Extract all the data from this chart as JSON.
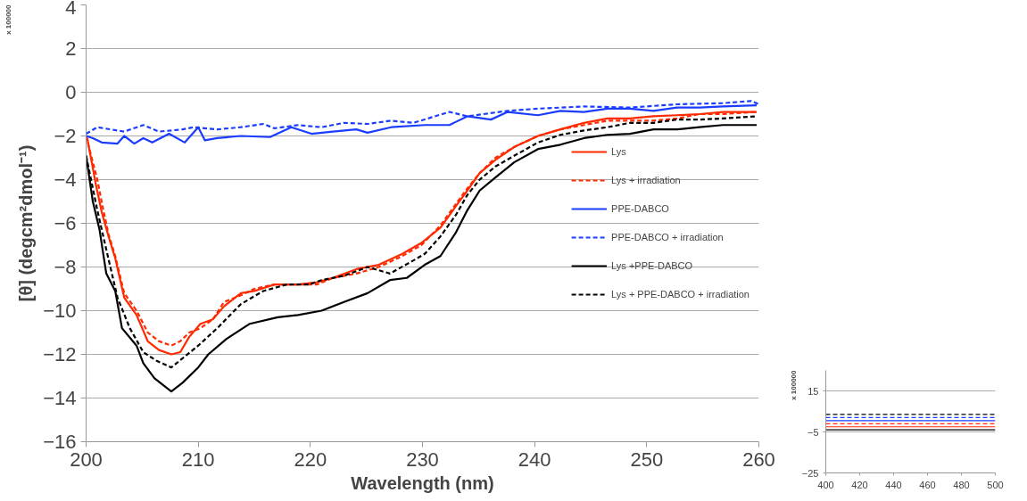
{
  "chart_data": [
    {
      "type": "line",
      "xlabel": "Wavelength (nm)",
      "ylabel": "[θ] (degcm²dmol⁻¹)",
      "annotations": [
        "x 100000"
      ],
      "xlim": [
        200,
        260
      ],
      "ylim": [
        -16,
        4
      ],
      "xticks": [
        200,
        210,
        220,
        230,
        240,
        250,
        260
      ],
      "yticks": [
        -16,
        -14,
        -12,
        -10,
        -8,
        -6,
        -4,
        -2,
        0,
        2,
        4
      ],
      "grid": "y",
      "legend": "right",
      "series": [
        {
          "name": "Lys",
          "color": "#ff2a00",
          "line_style": "solid",
          "x": [
            200.1,
            200.9,
            201.4,
            202.0,
            202.6,
            203.4,
            204.5,
            205.5,
            206.5,
            207.6,
            208.4,
            209.2,
            210.2,
            211.3,
            212.3,
            213.8,
            215.0,
            216.8,
            218.9,
            220.6,
            222.0,
            224.1,
            226.1,
            228.2,
            229.9,
            231.6,
            233.0,
            234.0,
            235.1,
            236.5,
            238.2,
            240.3,
            242.3,
            244.4,
            246.5,
            248.5,
            250.6,
            252.7,
            254.7,
            256.8,
            259.8
          ],
          "values": [
            -2.1,
            -4.3,
            -5.5,
            -6.6,
            -7.6,
            -9.4,
            -10.2,
            -11.4,
            -11.8,
            -12.0,
            -11.9,
            -11.2,
            -10.6,
            -10.4,
            -9.8,
            -9.2,
            -9.1,
            -8.8,
            -8.8,
            -8.7,
            -8.5,
            -8.1,
            -7.9,
            -7.4,
            -6.9,
            -6.2,
            -5.2,
            -4.5,
            -3.7,
            -3.1,
            -2.5,
            -2.0,
            -1.7,
            -1.4,
            -1.2,
            -1.2,
            -1.1,
            -1.05,
            -1.0,
            -0.9,
            -0.9
          ]
        },
        {
          "name": "Lys + irradiation",
          "color": "#ff2a00",
          "line_style": "dashed",
          "x": [
            200.0,
            201.0,
            201.5,
            202.0,
            202.6,
            203.4,
            204.5,
            205.5,
            206.5,
            207.6,
            208.4,
            209.2,
            210.2,
            211.3,
            212.3,
            213.8,
            215.0,
            216.8,
            218.9,
            220.6,
            222.0,
            224.1,
            226.1,
            228.2,
            229.9,
            231.6,
            233.0,
            234.0,
            235.1,
            236.5,
            238.2,
            240.3,
            242.3,
            244.4,
            246.5,
            248.5,
            250.6,
            252.7,
            254.7,
            256.8,
            259.8
          ],
          "values": [
            -2.0,
            -4.0,
            -5.3,
            -6.5,
            -7.5,
            -9.2,
            -10.0,
            -11.0,
            -11.4,
            -11.6,
            -11.4,
            -11.0,
            -10.8,
            -10.4,
            -9.6,
            -9.3,
            -9.0,
            -8.8,
            -8.8,
            -8.8,
            -8.5,
            -8.3,
            -8.0,
            -7.5,
            -7.0,
            -6.1,
            -5.1,
            -4.4,
            -3.7,
            -3.0,
            -2.5,
            -2.0,
            -1.7,
            -1.5,
            -1.3,
            -1.3,
            -1.3,
            -1.2,
            -1.0,
            -1.0,
            -0.9
          ]
        },
        {
          "name": "PPE-DABCO",
          "color": "#1a3cff",
          "line_style": "solid",
          "x": [
            200.0,
            200.6,
            201.4,
            202.8,
            203.4,
            204.3,
            205.1,
            205.9,
            207.4,
            208.8,
            210.0,
            210.6,
            211.7,
            213.8,
            216.4,
            218.3,
            220.1,
            222.0,
            224.1,
            225.1,
            227.2,
            230.2,
            232.4,
            234.0,
            236.1,
            237.6,
            240.3,
            242.3,
            244.4,
            246.5,
            248.5,
            250.6,
            252.7,
            254.7,
            256.8,
            259.8
          ],
          "values": [
            -2.0,
            -2.1,
            -2.3,
            -2.35,
            -2.0,
            -2.35,
            -2.1,
            -2.3,
            -1.9,
            -2.3,
            -1.6,
            -2.2,
            -2.1,
            -2.0,
            -2.05,
            -1.6,
            -1.9,
            -1.8,
            -1.7,
            -1.85,
            -1.6,
            -1.5,
            -1.5,
            -1.1,
            -1.25,
            -0.9,
            -1.05,
            -0.85,
            -0.9,
            -0.75,
            -0.75,
            -0.85,
            -0.7,
            -0.7,
            -0.65,
            -0.6
          ]
        },
        {
          "name": "PPE-DABCO + irradiation",
          "color": "#1a3cff",
          "line_style": "dashed",
          "x": [
            200.0,
            201.0,
            203.4,
            205.1,
            206.5,
            208.6,
            209.6,
            211.7,
            213.8,
            215.8,
            216.8,
            218.9,
            221.0,
            223.0,
            225.1,
            227.2,
            229.2,
            232.4,
            234.0,
            237.6,
            240.3,
            244.4,
            248.5,
            252.7,
            256.8,
            259.3,
            260.0
          ],
          "values": [
            -1.9,
            -1.6,
            -1.8,
            -1.5,
            -1.8,
            -1.7,
            -1.6,
            -1.7,
            -1.6,
            -1.45,
            -1.65,
            -1.5,
            -1.6,
            -1.4,
            -1.45,
            -1.3,
            -1.4,
            -0.9,
            -1.1,
            -0.85,
            -0.75,
            -0.65,
            -0.7,
            -0.55,
            -0.5,
            -0.4,
            -0.55
          ]
        },
        {
          "name": "Lys +PPE-DABCO",
          "color": "#000000",
          "line_style": "solid",
          "x": [
            200.0,
            200.6,
            201.2,
            201.8,
            202.6,
            203.2,
            204.5,
            205.1,
            206.1,
            207.6,
            208.6,
            210.0,
            210.9,
            212.5,
            214.6,
            217.1,
            218.9,
            221.0,
            223.0,
            225.1,
            227.1,
            228.6,
            230.2,
            231.6,
            233.0,
            234.0,
            235.1,
            236.5,
            238.2,
            240.3,
            242.3,
            244.4,
            246.5,
            248.5,
            250.6,
            252.7,
            254.7,
            256.8,
            259.8
          ],
          "values": [
            -2.9,
            -5.0,
            -6.3,
            -8.3,
            -9.1,
            -10.8,
            -11.6,
            -12.4,
            -13.1,
            -13.7,
            -13.3,
            -12.6,
            -12.0,
            -11.3,
            -10.6,
            -10.3,
            -10.2,
            -10.0,
            -9.6,
            -9.2,
            -8.6,
            -8.5,
            -7.9,
            -7.5,
            -6.4,
            -5.4,
            -4.5,
            -3.9,
            -3.2,
            -2.6,
            -2.4,
            -2.1,
            -1.95,
            -1.9,
            -1.7,
            -1.7,
            -1.6,
            -1.5,
            -1.5
          ]
        },
        {
          "name": "Lys + PPE-DABCO + irradiation",
          "color": "#000000",
          "line_style": "dashed",
          "x": [
            200.0,
            201.0,
            201.8,
            202.8,
            203.9,
            205.1,
            206.3,
            207.6,
            208.8,
            210.0,
            211.7,
            213.8,
            215.8,
            217.9,
            219.9,
            221.0,
            223.0,
            225.1,
            227.1,
            229.2,
            230.2,
            231.6,
            233.0,
            234.0,
            235.1,
            236.5,
            238.2,
            240.3,
            242.3,
            244.4,
            246.5,
            248.5,
            250.6,
            252.7,
            254.7,
            256.8,
            259.8
          ],
          "values": [
            -2.9,
            -5.4,
            -7.2,
            -9.4,
            -10.8,
            -11.9,
            -12.3,
            -12.6,
            -12.1,
            -11.6,
            -10.8,
            -9.7,
            -9.1,
            -8.8,
            -8.8,
            -8.6,
            -8.4,
            -8.0,
            -8.3,
            -7.7,
            -7.4,
            -6.6,
            -5.6,
            -4.7,
            -4.0,
            -3.4,
            -2.9,
            -2.3,
            -1.95,
            -1.75,
            -1.6,
            -1.4,
            -1.4,
            -1.25,
            -1.25,
            -1.2,
            -1.1
          ]
        }
      ]
    },
    {
      "type": "line",
      "annotations": [
        "x 100000"
      ],
      "xlim": [
        400,
        500
      ],
      "ylim": [
        -25,
        25
      ],
      "xticks": [
        400,
        420,
        440,
        460,
        480,
        500
      ],
      "yticks": [
        -25,
        -5,
        15
      ],
      "grid": "y",
      "series": [
        {
          "color": "#ff2a00",
          "line_style": "solid",
          "x": [
            400,
            500
          ],
          "values": [
            -2.5,
            -2.5
          ]
        },
        {
          "color": "#ff2a00",
          "line_style": "dashed",
          "x": [
            400,
            500
          ],
          "values": [
            -1,
            -1
          ]
        },
        {
          "color": "#1a3cff",
          "line_style": "solid",
          "x": [
            400,
            500
          ],
          "values": [
            0.5,
            0.5
          ]
        },
        {
          "color": "#1a3cff",
          "line_style": "dashed",
          "x": [
            400,
            500
          ],
          "values": [
            2,
            2
          ]
        },
        {
          "color": "#000000",
          "line_style": "solid",
          "x": [
            400,
            500
          ],
          "values": [
            -4,
            -4
          ]
        },
        {
          "color": "#000000",
          "line_style": "dashed",
          "x": [
            400,
            500
          ],
          "values": [
            3.5,
            3.5
          ]
        }
      ]
    }
  ]
}
